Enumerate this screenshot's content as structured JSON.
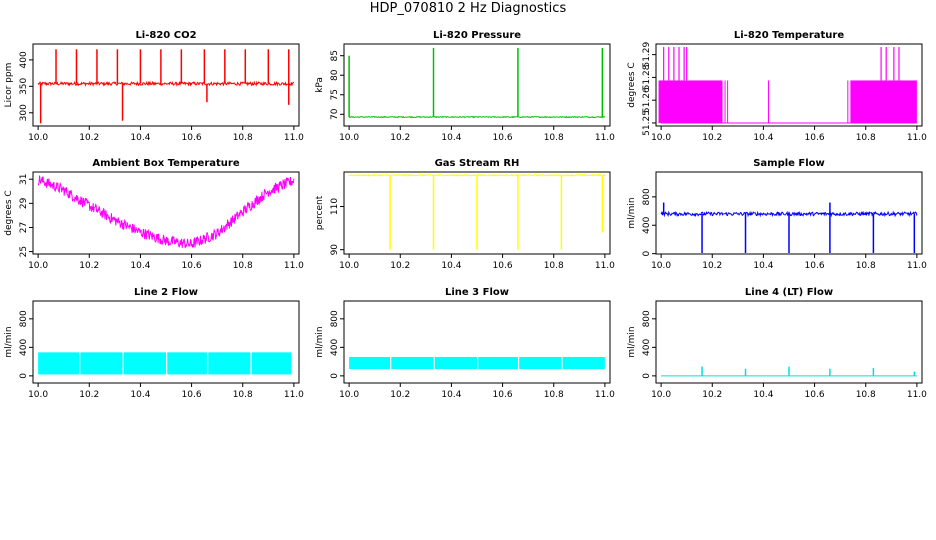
{
  "page": {
    "title": "HDP_070810  2 Hz Diagnostics"
  },
  "chart_data": [
    {
      "id": "co2",
      "type": "line",
      "title": "Li-820 CO2",
      "xlabel": "",
      "ylabel": "Licor ppm",
      "xlim": [
        9.98,
        11.02
      ],
      "ylim": [
        275,
        430
      ],
      "xticks": [
        "10.0",
        "10.2",
        "10.4",
        "10.6",
        "10.8",
        "11.0"
      ],
      "yticks": [
        "300",
        "350",
        "400"
      ],
      "ytick_values": [
        300,
        350,
        400
      ],
      "color": "#ff0000",
      "grid": false,
      "series": [
        {
          "baseline": 355,
          "noise": 3,
          "spikes_up": [
            {
              "x": 10.07,
              "y": 420
            },
            {
              "x": 10.15,
              "y": 420
            },
            {
              "x": 10.23,
              "y": 420
            },
            {
              "x": 10.31,
              "y": 420
            },
            {
              "x": 10.4,
              "y": 420
            },
            {
              "x": 10.48,
              "y": 420
            },
            {
              "x": 10.56,
              "y": 420
            },
            {
              "x": 10.65,
              "y": 420
            },
            {
              "x": 10.73,
              "y": 420
            },
            {
              "x": 10.81,
              "y": 420
            },
            {
              "x": 10.9,
              "y": 420
            },
            {
              "x": 10.98,
              "y": 420
            }
          ],
          "spikes_down": [
            {
              "x": 10.01,
              "y": 280
            },
            {
              "x": 10.33,
              "y": 285
            },
            {
              "x": 10.66,
              "y": 320
            },
            {
              "x": 10.98,
              "y": 315
            }
          ]
        }
      ]
    },
    {
      "id": "pressure",
      "type": "line",
      "title": "Li-820 Pressure",
      "xlabel": "",
      "ylabel": "kPa",
      "xlim": [
        9.98,
        11.02
      ],
      "ylim": [
        67,
        88
      ],
      "xticks": [
        "10.0",
        "10.2",
        "10.4",
        "10.6",
        "10.8",
        "11.0"
      ],
      "yticks": [
        "70",
        "75",
        "80",
        "85"
      ],
      "ytick_values": [
        70,
        75,
        80,
        85
      ],
      "color": "#00c000",
      "grid": false,
      "series": [
        {
          "baseline": 69.3,
          "noise": 0.12,
          "spikes_up": [
            {
              "x": 10.0,
              "y": 85
            },
            {
              "x": 10.33,
              "y": 87
            },
            {
              "x": 10.66,
              "y": 87
            },
            {
              "x": 10.99,
              "y": 87
            }
          ],
          "spikes_down": []
        }
      ]
    },
    {
      "id": "licor-temp",
      "type": "line",
      "title": "Li-820 Temperature",
      "xlabel": "",
      "ylabel": "degrees C",
      "xlim": [
        9.98,
        11.02
      ],
      "ylim": [
        51.248,
        51.302
      ],
      "xticks": [
        "10.0",
        "10.2",
        "10.4",
        "10.6",
        "10.8",
        "11.0"
      ],
      "yticks": [
        "51.25",
        "51.26",
        "51.28",
        "51.29"
      ],
      "ytick_values": [
        51.25,
        51.265,
        51.28,
        51.295
      ],
      "color": "#ff00ff",
      "grid": false,
      "series": [
        {
          "low": 51.25,
          "mid": 51.278,
          "high": 51.3,
          "dense_ranges": [
            [
              9.99,
              10.24
            ],
            [
              10.74,
              11.0
            ]
          ],
          "high_spikes": [
            10.01,
            10.03,
            10.05,
            10.07,
            10.09,
            10.1,
            10.86,
            10.88,
            10.91,
            10.93
          ],
          "mid_spikes": [
            10.25,
            10.26,
            10.42,
            10.73
          ]
        }
      ]
    },
    {
      "id": "ambient-temp",
      "type": "line",
      "title": "Ambient Box Temperature",
      "xlabel": "",
      "ylabel": "degrees C",
      "xlim": [
        9.98,
        11.02
      ],
      "ylim": [
        24.8,
        31.6
      ],
      "xticks": [
        "10.0",
        "10.2",
        "10.4",
        "10.6",
        "10.8",
        "11.0"
      ],
      "yticks": [
        "25",
        "27",
        "29",
        "31"
      ],
      "ytick_values": [
        25,
        27,
        29,
        31
      ],
      "color": "#ff00ff",
      "grid": false,
      "series": [
        {
          "x": [
            10.0,
            10.1,
            10.2,
            10.3,
            10.4,
            10.5,
            10.6,
            10.7,
            10.8,
            10.9,
            11.0
          ],
          "y": [
            31.0,
            30.1,
            28.8,
            27.6,
            26.6,
            25.9,
            25.6,
            26.5,
            28.3,
            30.0,
            30.9
          ],
          "noise": 0.45
        }
      ]
    },
    {
      "id": "rh",
      "type": "line",
      "title": "Gas Stream RH",
      "xlabel": "",
      "ylabel": "percent",
      "xlim": [
        9.98,
        11.02
      ],
      "ylim": [
        88,
        126
      ],
      "xticks": [
        "10.0",
        "10.2",
        "10.4",
        "10.6",
        "10.8",
        "11.0"
      ],
      "yticks": [
        "90",
        "110"
      ],
      "ytick_values": [
        90,
        110
      ],
      "color": "#ffff00",
      "grid": false,
      "series": [
        {
          "baseline": 124.5,
          "noise": 0.3,
          "spikes_down": [
            {
              "x": 10.16,
              "y": 90
            },
            {
              "x": 10.33,
              "y": 90
            },
            {
              "x": 10.5,
              "y": 90
            },
            {
              "x": 10.66,
              "y": 90
            },
            {
              "x": 10.83,
              "y": 90
            },
            {
              "x": 10.99,
              "y": 98
            }
          ],
          "spikes_up": []
        }
      ]
    },
    {
      "id": "sample-flow",
      "type": "line",
      "title": "Sample Flow",
      "xlabel": "",
      "ylabel": "ml/min",
      "xlim": [
        9.98,
        11.02
      ],
      "ylim": [
        -5,
        1150
      ],
      "xticks": [
        "10.0",
        "10.2",
        "10.4",
        "10.6",
        "10.8",
        "11.0"
      ],
      "yticks": [
        "0",
        "400",
        "800"
      ],
      "ytick_values": [
        0,
        400,
        800
      ],
      "color": "#0000ff",
      "grid": false,
      "series": [
        {
          "baseline": 560,
          "noise": 25,
          "spikes_down": [
            {
              "x": 10.16,
              "y": 0
            },
            {
              "x": 10.33,
              "y": 0
            },
            {
              "x": 10.5,
              "y": 0
            },
            {
              "x": 10.66,
              "y": 0
            },
            {
              "x": 10.83,
              "y": 0
            },
            {
              "x": 10.99,
              "y": 0
            }
          ],
          "spikes_up": [
            {
              "x": 10.01,
              "y": 720
            },
            {
              "x": 10.66,
              "y": 720
            }
          ]
        }
      ]
    },
    {
      "id": "line2",
      "type": "area",
      "title": "Line 2 Flow",
      "xlabel": "",
      "ylabel": "ml/min",
      "xlim": [
        9.98,
        11.02
      ],
      "ylim": [
        -100,
        1050
      ],
      "xticks": [
        "10.0",
        "10.2",
        "10.4",
        "10.6",
        "10.8",
        "11.0"
      ],
      "yticks": [
        "0",
        "400",
        "800"
      ],
      "ytick_values": [
        0,
        400,
        800
      ],
      "color": "#00ffff",
      "grid": false,
      "series": [
        {
          "blocks": [
            [
              10.0,
              10.16
            ],
            [
              10.165,
              10.33
            ],
            [
              10.335,
              10.5
            ],
            [
              10.505,
              10.66
            ],
            [
              10.665,
              10.83
            ],
            [
              10.835,
              10.99
            ]
          ],
          "low": 20,
          "high": 330
        }
      ]
    },
    {
      "id": "line3",
      "type": "area",
      "title": "Line 3 Flow",
      "xlabel": "",
      "ylabel": "ml/min",
      "xlim": [
        9.98,
        11.02
      ],
      "ylim": [
        -100,
        1050
      ],
      "xticks": [
        "10.0",
        "10.2",
        "10.4",
        "10.6",
        "10.8",
        "11.0"
      ],
      "yticks": [
        "0",
        "400",
        "800"
      ],
      "ytick_values": [
        0,
        400,
        800
      ],
      "color": "#00ffff",
      "grid": false,
      "series": [
        {
          "blocks": [
            [
              10.0,
              10.16
            ],
            [
              10.165,
              10.33
            ],
            [
              10.335,
              10.5
            ],
            [
              10.505,
              10.66
            ],
            [
              10.665,
              10.83
            ],
            [
              10.835,
              11.0
            ]
          ],
          "low": 95,
          "high": 265
        }
      ]
    },
    {
      "id": "line4",
      "type": "line",
      "title": "Line 4 (LT) Flow",
      "xlabel": "",
      "ylabel": "ml/min",
      "xlim": [
        9.98,
        11.02
      ],
      "ylim": [
        -100,
        1050
      ],
      "xticks": [
        "10.0",
        "10.2",
        "10.4",
        "10.6",
        "10.8",
        "11.0"
      ],
      "yticks": [
        "0",
        "400",
        "800"
      ],
      "ytick_values": [
        0,
        400,
        800
      ],
      "color": "#00e0e0",
      "grid": false,
      "series": [
        {
          "baseline": 0,
          "noise": 0,
          "spikes_up": [
            {
              "x": 10.16,
              "y": 130
            },
            {
              "x": 10.33,
              "y": 100
            },
            {
              "x": 10.5,
              "y": 130
            },
            {
              "x": 10.66,
              "y": 100
            },
            {
              "x": 10.83,
              "y": 110
            },
            {
              "x": 10.99,
              "y": 60
            }
          ],
          "spikes_down": []
        }
      ]
    }
  ]
}
